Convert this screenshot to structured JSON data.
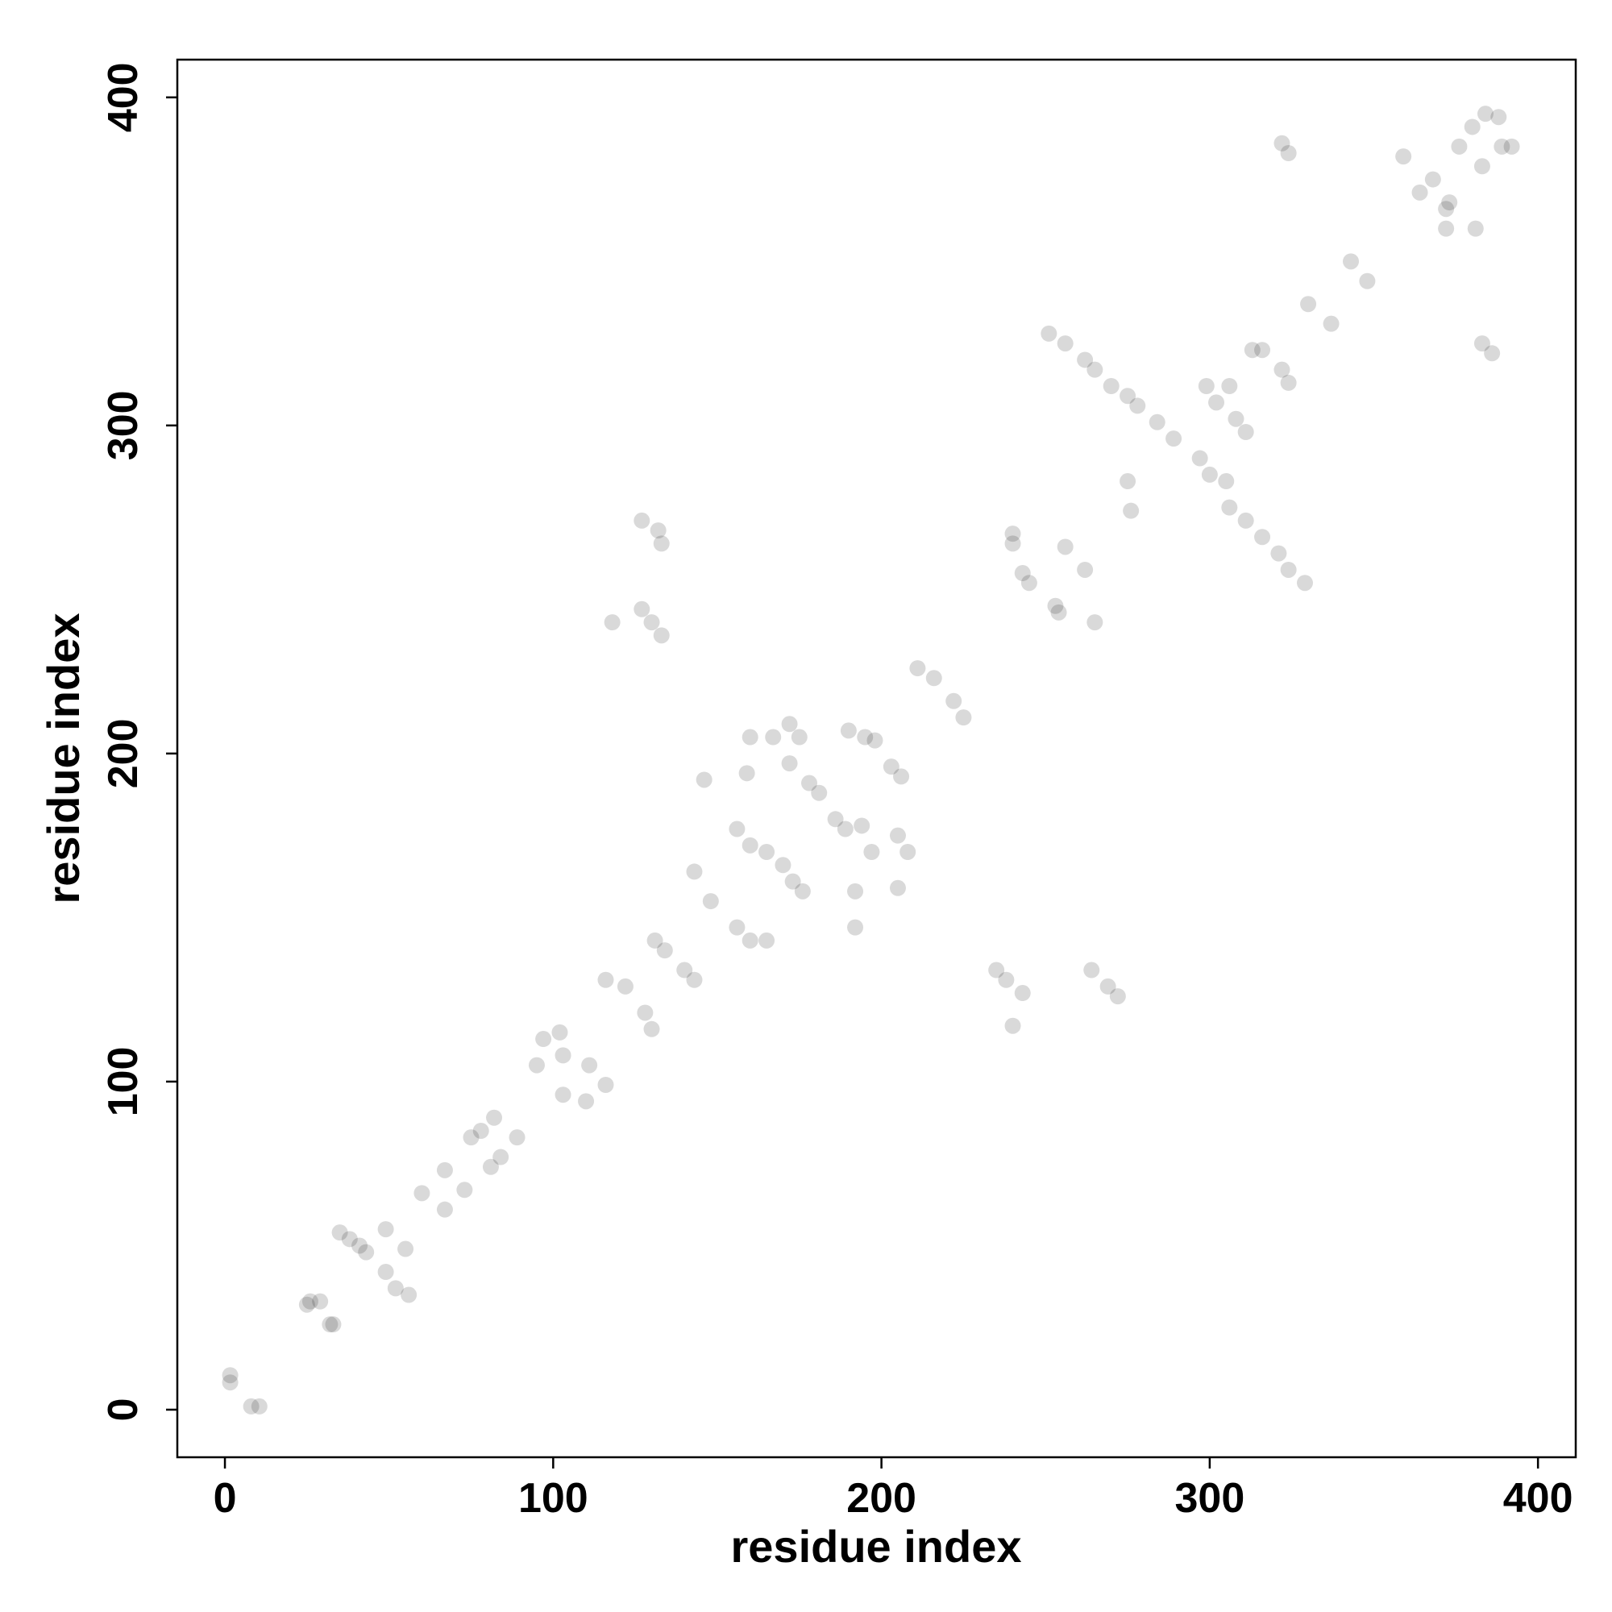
{
  "chart_data": {
    "type": "scatter",
    "xlabel": "residue index",
    "ylabel": "residue index",
    "xlim": [
      -14.5,
      411.5
    ],
    "ylim": [
      -14.5,
      411.5
    ],
    "xticks": [
      0,
      100,
      200,
      300,
      400
    ],
    "yticks": [
      0,
      100,
      200,
      300,
      400
    ],
    "grid": false,
    "series": [
      {
        "color": "#000000",
        "alpha": 0.15,
        "x": [
          1.6,
          1.6,
          8,
          10.5,
          26,
          25,
          29,
          33,
          32,
          35,
          38,
          41,
          43,
          49,
          52,
          56,
          49,
          55,
          60,
          67,
          73,
          67,
          75,
          78,
          82,
          84,
          81,
          89,
          95,
          97,
          102,
          103,
          110,
          111,
          116,
          103,
          116,
          122,
          128,
          130,
          131,
          134,
          140,
          143,
          143,
          148,
          156,
          160,
          165,
          146,
          156,
          160,
          165,
          159,
          160,
          167,
          172,
          175,
          170,
          173,
          176,
          172,
          178,
          181,
          186,
          189,
          194,
          192,
          192,
          197,
          190,
          195,
          198,
          203,
          206,
          205,
          208,
          205,
          211,
          216,
          222,
          225,
          118,
          127,
          130,
          133,
          127,
          132,
          133,
          235,
          238,
          243,
          240,
          264,
          269,
          272,
          240,
          240,
          243,
          245,
          253,
          256,
          262,
          265,
          254,
          251,
          256,
          262,
          265,
          270,
          275,
          278,
          275,
          276,
          284,
          289,
          297,
          300,
          305,
          299,
          302,
          306,
          308,
          311,
          306,
          311,
          316,
          321,
          324,
          329,
          313,
          316,
          322,
          324,
          322,
          324,
          330,
          337,
          343,
          348,
          359,
          364,
          368,
          372,
          373,
          372,
          381,
          376,
          380,
          384,
          388,
          389,
          392,
          383,
          383,
          386
        ],
        "values": [
          8.3,
          10.5,
          1,
          1,
          33,
          32,
          33,
          26,
          26,
          54,
          52,
          50,
          48,
          42,
          37,
          35,
          55,
          49,
          66,
          73,
          67,
          61,
          83,
          85,
          89,
          77,
          74,
          83,
          105,
          113,
          115,
          96,
          94,
          105,
          99,
          108,
          131,
          129,
          121,
          116,
          143,
          140,
          134,
          131,
          164,
          155,
          147,
          143,
          143,
          192,
          177,
          172,
          170,
          194,
          205,
          205,
          209,
          205,
          166,
          161,
          158,
          197,
          191,
          188,
          180,
          177,
          178,
          158,
          147,
          170,
          207,
          205,
          204,
          196,
          193,
          175,
          170,
          159,
          226,
          223,
          216,
          211,
          240,
          244,
          240,
          236,
          271,
          268,
          264,
          134,
          131,
          127,
          117,
          134,
          129,
          126,
          267,
          264,
          255,
          252,
          245,
          263,
          256,
          240,
          243,
          328,
          325,
          320,
          317,
          312,
          309,
          306,
          283,
          274,
          301,
          296,
          290,
          285,
          283,
          312,
          307,
          312,
          302,
          298,
          275,
          271,
          266,
          261,
          256,
          252,
          323,
          323,
          317,
          313,
          386,
          383,
          337,
          331,
          350,
          344,
          382,
          371,
          375,
          366,
          368,
          360,
          360,
          385,
          391,
          395,
          394,
          385,
          385,
          379,
          325,
          322
        ]
      }
    ]
  }
}
